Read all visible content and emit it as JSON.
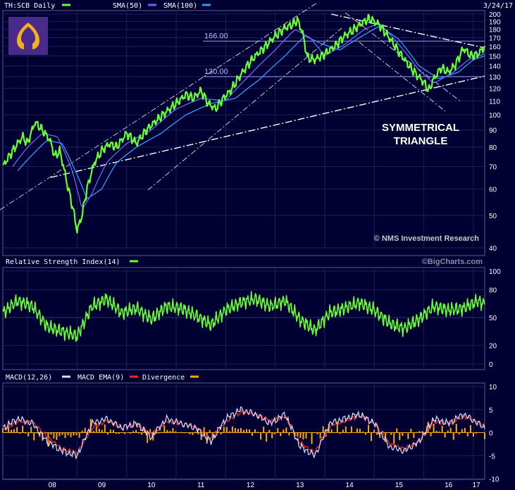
{
  "header": {
    "ticker_label": "TH:SCB Daily",
    "sma50_label": "SMA(50)",
    "sma100_label": "SMA(100)",
    "date": "3/24/17"
  },
  "colors": {
    "background": "#000033",
    "price": "#66ff33",
    "sma50": "#6666ff",
    "sma100": "#3399ff",
    "macd": "#cce6ff",
    "macd_ema": "#ff2222",
    "divergence": "#ffaa00",
    "logo_bg": "#4a2a8a",
    "logo_fg": "#f0b020"
  },
  "logo": {
    "icon": "scb-crest-icon"
  },
  "annotations": {
    "pattern": [
      "SYMMETRICAL",
      "TRIANGLE"
    ],
    "level_166": "166.00",
    "level_130": "130.00",
    "credit": "© NMS Investment Research",
    "watermark": "©BigCharts.com"
  },
  "rsi_panel": {
    "label": "Relative Strength Index(14)"
  },
  "macd_panel": {
    "macd_label": "MACD(12,26)",
    "ema_label": "MACD EMA(9)",
    "div_label": "Divergence"
  },
  "chart_data": [
    {
      "type": "line",
      "title": "TH:SCB Daily",
      "scale": "log",
      "ylim": [
        40,
        200
      ],
      "yticks": [
        40,
        50,
        60,
        70,
        80,
        90,
        100,
        110,
        120,
        130,
        140,
        150,
        160,
        170,
        180,
        190,
        200
      ],
      "xlim": [
        2007.5,
        2017.23
      ],
      "xticks": [
        "08",
        "09",
        "10",
        "11",
        "12",
        "13",
        "14",
        "15",
        "16",
        "17"
      ],
      "series": [
        {
          "name": "TH:SCB Daily",
          "x": [
            2007.5,
            2007.6,
            2007.75,
            2007.9,
            2008.0,
            2008.15,
            2008.3,
            2008.45,
            2008.55,
            2008.65,
            2008.8,
            2008.92,
            2009.0,
            2009.1,
            2009.2,
            2009.35,
            2009.5,
            2009.65,
            2009.8,
            2010.0,
            2010.2,
            2010.4,
            2010.6,
            2010.8,
            2011.0,
            2011.2,
            2011.35,
            2011.5,
            2011.65,
            2011.8,
            2011.95,
            2012.1,
            2012.25,
            2012.4,
            2012.6,
            2012.8,
            2013.0,
            2013.2,
            2013.35,
            2013.45,
            2013.55,
            2013.65,
            2013.8,
            2014.0,
            2014.2,
            2014.4,
            2014.6,
            2014.75,
            2014.9,
            2015.1,
            2015.3,
            2015.5,
            2015.7,
            2015.85,
            2016.0,
            2016.1,
            2016.2,
            2016.35,
            2016.5,
            2016.65,
            2016.8,
            2016.95,
            2017.1,
            2017.23
          ],
          "values": [
            70,
            74,
            80,
            86,
            82,
            95,
            90,
            84,
            75,
            78,
            62,
            52,
            45,
            50,
            60,
            72,
            78,
            82,
            80,
            88,
            82,
            90,
            96,
            102,
            108,
            115,
            112,
            118,
            108,
            104,
            112,
            118,
            128,
            138,
            150,
            160,
            172,
            182,
            186,
            192,
            176,
            148,
            146,
            152,
            160,
            172,
            180,
            188,
            194,
            186,
            170,
            154,
            140,
            132,
            125,
            118,
            128,
            138,
            134,
            142,
            158,
            150,
            152,
            160
          ]
        },
        {
          "name": "SMA(50)",
          "x": [
            2007.7,
            2008.0,
            2008.3,
            2008.6,
            2008.9,
            2009.1,
            2009.3,
            2009.6,
            2010.0,
            2010.5,
            2011.0,
            2011.5,
            2012.0,
            2012.5,
            2013.0,
            2013.4,
            2013.7,
            2014.0,
            2014.4,
            2014.8,
            2015.1,
            2015.5,
            2015.9,
            2016.2,
            2016.6,
            2016.9,
            2017.23
          ],
          "values": [
            70,
            80,
            88,
            86,
            68,
            52,
            58,
            72,
            82,
            90,
            104,
            112,
            110,
            132,
            156,
            180,
            170,
            150,
            162,
            180,
            188,
            162,
            136,
            124,
            134,
            146,
            152
          ]
        },
        {
          "name": "SMA(100)",
          "x": [
            2007.8,
            2008.1,
            2008.4,
            2008.7,
            2009.0,
            2009.2,
            2009.5,
            2009.8,
            2010.2,
            2010.7,
            2011.2,
            2011.7,
            2012.2,
            2012.7,
            2013.2,
            2013.6,
            2013.9,
            2014.3,
            2014.7,
            2015.1,
            2015.5,
            2015.9,
            2016.3,
            2016.7,
            2017.0,
            2017.23
          ],
          "values": [
            68,
            76,
            84,
            82,
            66,
            56,
            60,
            72,
            80,
            88,
            100,
            108,
            112,
            128,
            150,
            172,
            164,
            156,
            170,
            184,
            168,
            140,
            128,
            134,
            146,
            150
          ]
        }
      ]
    },
    {
      "type": "line",
      "title": "Relative Strength Index(14)",
      "ylim": [
        0,
        100
      ],
      "yticks": [
        0,
        20,
        50,
        80,
        100
      ],
      "series": [
        {
          "name": "Relative Strength Index(14)",
          "x": [
            2007.5,
            2007.8,
            2008.1,
            2008.4,
            2008.7,
            2009.0,
            2009.3,
            2009.6,
            2009.9,
            2010.2,
            2010.5,
            2010.8,
            2011.1,
            2011.4,
            2011.7,
            2012.0,
            2012.3,
            2012.6,
            2012.9,
            2013.2,
            2013.5,
            2013.8,
            2014.1,
            2014.4,
            2014.7,
            2015.0,
            2015.3,
            2015.6,
            2015.9,
            2016.2,
            2016.5,
            2016.8,
            2017.1,
            2017.23
          ],
          "values": [
            55,
            68,
            62,
            40,
            35,
            30,
            62,
            70,
            55,
            60,
            48,
            62,
            60,
            52,
            42,
            58,
            66,
            70,
            62,
            68,
            48,
            36,
            55,
            60,
            66,
            58,
            44,
            38,
            48,
            62,
            58,
            60,
            68,
            64
          ]
        }
      ]
    },
    {
      "type": "line",
      "title": "MACD(12,26)",
      "ylim": [
        -10,
        10
      ],
      "yticks": [
        -10,
        -5,
        0,
        5,
        10
      ],
      "series": [
        {
          "name": "MACD(12,26)",
          "x": [
            2007.5,
            2007.8,
            2008.1,
            2008.4,
            2008.7,
            2009.0,
            2009.3,
            2009.6,
            2009.9,
            2010.2,
            2010.5,
            2010.8,
            2011.1,
            2011.4,
            2011.7,
            2012.0,
            2012.3,
            2012.6,
            2012.9,
            2013.2,
            2013.5,
            2013.8,
            2014.1,
            2014.4,
            2014.7,
            2015.0,
            2015.3,
            2015.6,
            2015.9,
            2016.2,
            2016.5,
            2016.8,
            2017.1,
            2017.23
          ],
          "values": [
            1,
            3,
            2,
            -2,
            -4,
            -5,
            2,
            3,
            1,
            2,
            -1,
            3,
            2,
            1,
            -2,
            3,
            5,
            4,
            2,
            4,
            -3,
            -5,
            2,
            3,
            4,
            2,
            -3,
            -4,
            -2,
            3,
            2,
            4,
            2,
            1
          ]
        },
        {
          "name": "MACD EMA(9)",
          "x": [
            2007.5,
            2007.8,
            2008.1,
            2008.4,
            2008.7,
            2009.0,
            2009.3,
            2009.6,
            2009.9,
            2010.2,
            2010.5,
            2010.8,
            2011.1,
            2011.4,
            2011.7,
            2012.0,
            2012.3,
            2012.6,
            2012.9,
            2013.2,
            2013.5,
            2013.8,
            2014.1,
            2014.4,
            2014.7,
            2015.0,
            2015.3,
            2015.6,
            2015.9,
            2016.2,
            2016.5,
            2016.8,
            2017.1,
            2017.23
          ],
          "values": [
            0.5,
            2.5,
            2.2,
            -1,
            -3.5,
            -4.5,
            1,
            2.6,
            1.2,
            1.8,
            -0.5,
            2.4,
            2,
            1.2,
            -1.5,
            2.4,
            4.4,
            4,
            2.4,
            3.6,
            -2.2,
            -4.4,
            1.4,
            2.6,
            3.6,
            2.2,
            -2.4,
            -3.6,
            -2,
            2.4,
            2,
            3.6,
            2.2,
            1.2
          ]
        }
      ]
    }
  ]
}
